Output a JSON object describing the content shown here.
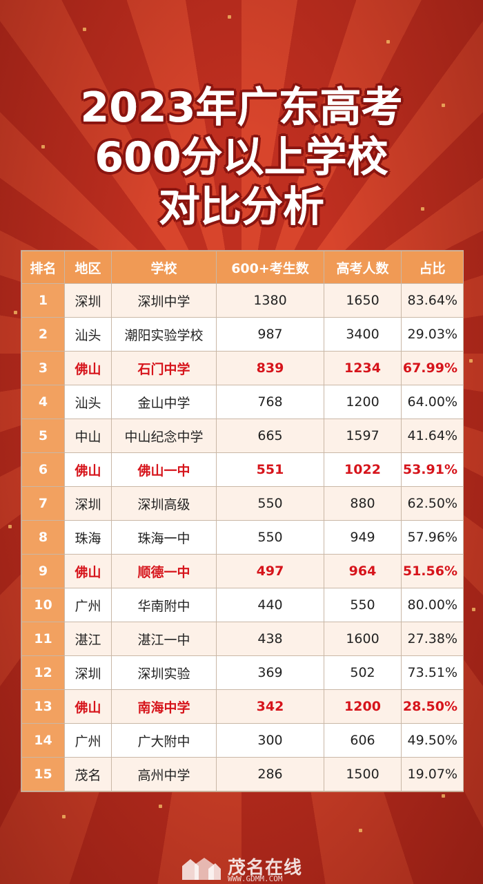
{
  "title": {
    "line1": "2023年广东高考",
    "line2": "600分以上学校",
    "line3": "对比分析"
  },
  "table": {
    "headers": [
      "排名",
      "地区",
      "学校",
      "600+考生数",
      "高考人数",
      "占比"
    ],
    "rows": [
      {
        "rank": "1",
        "region": "深圳",
        "school": "深圳中学",
        "count600": "1380",
        "total": "1650",
        "ratio": "83.64%",
        "highlight": false
      },
      {
        "rank": "2",
        "region": "汕头",
        "school": "潮阳实验学校",
        "count600": "987",
        "total": "3400",
        "ratio": "29.03%",
        "highlight": false
      },
      {
        "rank": "3",
        "region": "佛山",
        "school": "石门中学",
        "count600": "839",
        "total": "1234",
        "ratio": "67.99%",
        "highlight": true
      },
      {
        "rank": "4",
        "region": "汕头",
        "school": "金山中学",
        "count600": "768",
        "total": "1200",
        "ratio": "64.00%",
        "highlight": false
      },
      {
        "rank": "5",
        "region": "中山",
        "school": "中山纪念中学",
        "count600": "665",
        "total": "1597",
        "ratio": "41.64%",
        "highlight": false
      },
      {
        "rank": "6",
        "region": "佛山",
        "school": "佛山一中",
        "count600": "551",
        "total": "1022",
        "ratio": "53.91%",
        "highlight": true
      },
      {
        "rank": "7",
        "region": "深圳",
        "school": "深圳高级",
        "count600": "550",
        "total": "880",
        "ratio": "62.50%",
        "highlight": false
      },
      {
        "rank": "8",
        "region": "珠海",
        "school": "珠海一中",
        "count600": "550",
        "total": "949",
        "ratio": "57.96%",
        "highlight": false
      },
      {
        "rank": "9",
        "region": "佛山",
        "school": "顺德一中",
        "count600": "497",
        "total": "964",
        "ratio": "51.56%",
        "highlight": true
      },
      {
        "rank": "10",
        "region": "广州",
        "school": "华南附中",
        "count600": "440",
        "total": "550",
        "ratio": "80.00%",
        "highlight": false
      },
      {
        "rank": "11",
        "region": "湛江",
        "school": "湛江一中",
        "count600": "438",
        "total": "1600",
        "ratio": "27.38%",
        "highlight": false
      },
      {
        "rank": "12",
        "region": "深圳",
        "school": "深圳实验",
        "count600": "369",
        "total": "502",
        "ratio": "73.51%",
        "highlight": false
      },
      {
        "rank": "13",
        "region": "佛山",
        "school": "南海中学",
        "count600": "342",
        "total": "1200",
        "ratio": "28.50%",
        "highlight": true
      },
      {
        "rank": "14",
        "region": "广州",
        "school": "广大附中",
        "count600": "300",
        "total": "606",
        "ratio": "49.50%",
        "highlight": false
      },
      {
        "rank": "15",
        "region": "茂名",
        "school": "高州中学",
        "count600": "286",
        "total": "1500",
        "ratio": "19.07%",
        "highlight": false
      }
    ]
  },
  "footer": {
    "logo_text": "茂名在线",
    "logo_url": "WWW.GDMM.COM",
    "logo_icon": "building-logo-icon"
  },
  "colors": {
    "header_bg": "#f09a55",
    "highlight_text": "#d6141b",
    "background_red": "#d8452c"
  }
}
